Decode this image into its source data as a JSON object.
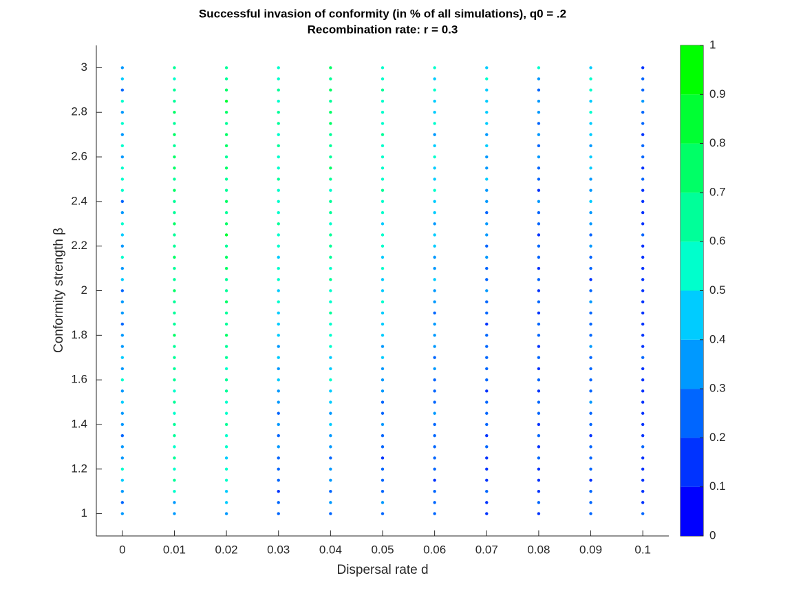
{
  "chart_data": {
    "type": "scatter",
    "title": "Successful invasion of conformity (in % of all simulations), q0 = .2",
    "subtitle": "Recombination rate: r = 0.3",
    "x_label": "Dispersal rate d",
    "y_label": "Conformity strength β",
    "x": [
      0,
      0.01,
      0.02,
      0.03,
      0.04,
      0.05,
      0.06,
      0.07,
      0.08,
      0.09,
      0.1
    ],
    "y": [
      1,
      1.05,
      1.1,
      1.15,
      1.2,
      1.25,
      1.3,
      1.35,
      1.4,
      1.45,
      1.5,
      1.55,
      1.6,
      1.65,
      1.7,
      1.75,
      1.8,
      1.85,
      1.9,
      1.95,
      2,
      2.05,
      2.1,
      2.15,
      2.2,
      2.25,
      2.3,
      2.35,
      2.4,
      2.45,
      2.5,
      2.55,
      2.6,
      2.65,
      2.7,
      2.75,
      2.8,
      2.85,
      2.9,
      2.95,
      3
    ],
    "values": [
      [
        0.35,
        0.25,
        0.3,
        0.45,
        0.55,
        0.35,
        0.3,
        0.25,
        0.35,
        0.3,
        0.45,
        0.35,
        0.55,
        0.35,
        0.4,
        0.3,
        0.35,
        0.25,
        0.35,
        0.3,
        0.25,
        0.45,
        0.35,
        0.55,
        0.3,
        0.45,
        0.5,
        0.35,
        0.25,
        0.55,
        0.5,
        0.55,
        0.35,
        0.5,
        0.3,
        0.5,
        0.35,
        0.55,
        0.25,
        0.45,
        0.35
      ],
      [
        0.3,
        0.35,
        0.55,
        0.65,
        0.55,
        0.6,
        0.5,
        0.6,
        0.65,
        0.55,
        0.65,
        0.55,
        0.6,
        0.65,
        0.6,
        0.65,
        0.7,
        0.65,
        0.6,
        0.65,
        0.7,
        0.65,
        0.6,
        0.75,
        0.65,
        0.6,
        0.7,
        0.6,
        0.65,
        0.7,
        0.65,
        0.7,
        0.75,
        0.65,
        0.7,
        0.65,
        0.7,
        0.6,
        0.65,
        0.55,
        0.6
      ],
      [
        0.35,
        0.4,
        0.45,
        0.5,
        0.55,
        0.45,
        0.5,
        0.55,
        0.6,
        0.5,
        0.55,
        0.6,
        0.65,
        0.55,
        0.6,
        0.65,
        0.7,
        0.65,
        0.6,
        0.7,
        0.65,
        0.6,
        0.75,
        0.7,
        0.65,
        0.8,
        0.75,
        0.65,
        0.7,
        0.6,
        0.65,
        0.7,
        0.65,
        0.7,
        0.75,
        0.65,
        0.7,
        0.8,
        0.7,
        0.65,
        0.6
      ],
      [
        0.25,
        0.2,
        0.15,
        0.2,
        0.25,
        0.2,
        0.3,
        0.25,
        0.3,
        0.25,
        0.35,
        0.3,
        0.4,
        0.35,
        0.4,
        0.3,
        0.45,
        0.4,
        0.45,
        0.5,
        0.45,
        0.55,
        0.5,
        0.45,
        0.55,
        0.5,
        0.6,
        0.55,
        0.5,
        0.55,
        0.6,
        0.55,
        0.5,
        0.6,
        0.55,
        0.65,
        0.6,
        0.55,
        0.6,
        0.55,
        0.5
      ],
      [
        0.25,
        0.3,
        0.25,
        0.35,
        0.3,
        0.25,
        0.35,
        0.3,
        0.4,
        0.35,
        0.45,
        0.4,
        0.5,
        0.45,
        0.4,
        0.5,
        0.55,
        0.5,
        0.6,
        0.55,
        0.5,
        0.6,
        0.55,
        0.6,
        0.65,
        0.6,
        0.55,
        0.65,
        0.6,
        0.55,
        0.65,
        0.7,
        0.6,
        0.65,
        0.6,
        0.7,
        0.75,
        0.65,
        0.7,
        0.6,
        0.75
      ],
      [
        0.25,
        0.3,
        0.25,
        0.2,
        0.25,
        0.15,
        0.25,
        0.2,
        0.3,
        0.25,
        0.2,
        0.3,
        0.35,
        0.3,
        0.4,
        0.35,
        0.4,
        0.45,
        0.4,
        0.5,
        0.45,
        0.4,
        0.5,
        0.45,
        0.55,
        0.5,
        0.45,
        0.55,
        0.5,
        0.6,
        0.55,
        0.5,
        0.55,
        0.5,
        0.6,
        0.55,
        0.5,
        0.55,
        0.6,
        0.5,
        0.55
      ],
      [
        0.2,
        0.25,
        0.2,
        0.15,
        0.2,
        0.25,
        0.2,
        0.25,
        0.2,
        0.3,
        0.25,
        0.2,
        0.25,
        0.3,
        0.25,
        0.3,
        0.35,
        0.3,
        0.25,
        0.35,
        0.3,
        0.4,
        0.35,
        0.3,
        0.45,
        0.4,
        0.35,
        0.45,
        0.4,
        0.5,
        0.45,
        0.4,
        0.5,
        0.45,
        0.35,
        0.5,
        0.4,
        0.45,
        0.5,
        0.45,
        0.5
      ],
      [
        0.1,
        0.15,
        0.2,
        0.15,
        0.1,
        0.15,
        0.2,
        0.15,
        0.2,
        0.25,
        0.2,
        0.15,
        0.2,
        0.25,
        0.2,
        0.25,
        0.2,
        0.15,
        0.25,
        0.2,
        0.3,
        0.25,
        0.2,
        0.3,
        0.25,
        0.35,
        0.3,
        0.25,
        0.35,
        0.3,
        0.4,
        0.35,
        0.3,
        0.4,
        0.35,
        0.45,
        0.4,
        0.45,
        0.4,
        0.5,
        0.45
      ],
      [
        0.15,
        0.2,
        0.15,
        0.1,
        0.15,
        0.2,
        0.15,
        0.2,
        0.15,
        0.2,
        0.25,
        0.15,
        0.2,
        0.15,
        0.2,
        0.15,
        0.25,
        0.2,
        0.15,
        0.2,
        0.1,
        0.2,
        0.15,
        0.25,
        0.2,
        0.15,
        0.25,
        0.2,
        0.3,
        0.15,
        0.25,
        0.2,
        0.3,
        0.25,
        0.35,
        0.2,
        0.3,
        0.35,
        0.25,
        0.35,
        0.5
      ],
      [
        0.2,
        0.25,
        0.2,
        0.15,
        0.2,
        0.25,
        0.2,
        0.15,
        0.25,
        0.2,
        0.3,
        0.25,
        0.2,
        0.25,
        0.2,
        0.3,
        0.25,
        0.2,
        0.25,
        0.3,
        0.2,
        0.15,
        0.25,
        0.2,
        0.3,
        0.25,
        0.35,
        0.3,
        0.4,
        0.35,
        0.3,
        0.45,
        0.4,
        0.35,
        0.45,
        0.4,
        0.5,
        0.45,
        0.55,
        0.5,
        0.45
      ],
      [
        0.2,
        0.15,
        0.1,
        0.15,
        0.1,
        0.15,
        0.2,
        0.15,
        0.1,
        0.15,
        0.1,
        0.15,
        0.1,
        0.15,
        0.2,
        0.1,
        0.15,
        0.1,
        0.15,
        0.1,
        0.15,
        0.1,
        0.15,
        0.1,
        0.15,
        0.2,
        0.15,
        0.1,
        0.15,
        0.1,
        0.2,
        0.15,
        0.2,
        0.25,
        0.15,
        0.2,
        0.25,
        0.3,
        0.2,
        0.25,
        0.15
      ]
    ],
    "xlim": [
      -0.005,
      0.105
    ],
    "ylim": [
      0.9,
      3.1
    ],
    "xticks": [
      0,
      0.01,
      0.02,
      0.03,
      0.04,
      0.05,
      0.06,
      0.07,
      0.08,
      0.09,
      0.1
    ],
    "yticks": [
      1,
      1.2,
      1.4,
      1.6,
      1.8,
      2,
      2.2,
      2.4,
      2.6,
      2.8,
      3
    ],
    "clim": [
      0,
      1
    ],
    "cticks": [
      0,
      0.1,
      0.2,
      0.3,
      0.4,
      0.5,
      0.6,
      0.7,
      0.8,
      0.9,
      1
    ],
    "colormap": [
      "#0000ff",
      "#0033ff",
      "#0066ff",
      "#0099ff",
      "#00ccff",
      "#00ffcc",
      "#00ff99",
      "#00ff66",
      "#00ff33",
      "#00ff00"
    ]
  }
}
